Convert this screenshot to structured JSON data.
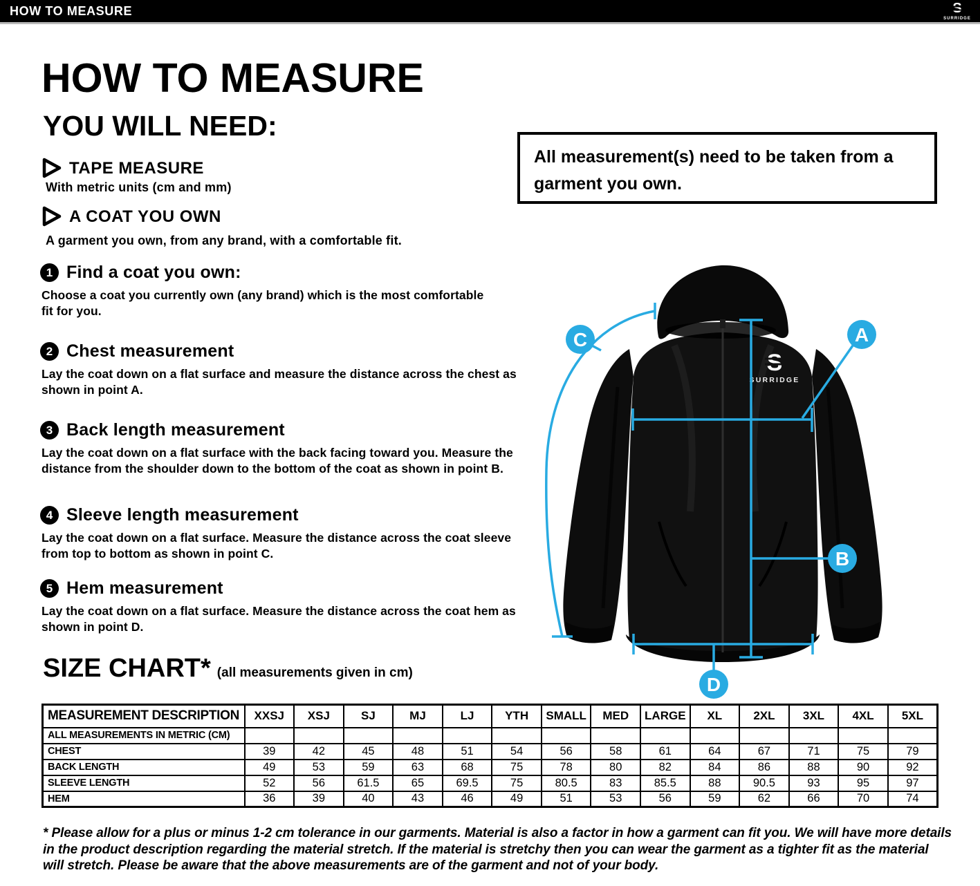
{
  "brand": {
    "glyph": "S",
    "name": "SURRIDGE"
  },
  "header": {
    "title": "HOW TO MEASURE"
  },
  "intro": {
    "title": "HOW TO MEASURE",
    "subtitle": "YOU WILL NEED:",
    "requirements": [
      {
        "label": "TAPE MEASURE",
        "description": "With metric units (cm and mm)"
      },
      {
        "label": "A COAT YOU OWN",
        "description": "A garment you own, from any brand, with a comfortable fit."
      }
    ]
  },
  "steps": [
    {
      "number": "1",
      "title": "Find a coat you own:",
      "description": "Choose a coat you currently own (any brand) which is the most comfortable fit for you."
    },
    {
      "number": "2",
      "title": "Chest measurement",
      "description": "Lay the coat down on a flat surface and measure the distance across the chest as shown in point A."
    },
    {
      "number": "3",
      "title": "Back length measurement",
      "description": "Lay the coat down on a flat surface with the back facing toward you. Measure the distance from the shoulder down to the bottom of the coat as shown in point B."
    },
    {
      "number": "4",
      "title": "Sleeve length measurement",
      "description": "Lay the coat down on a flat surface. Measure the distance across the coat sleeve from top to bottom as shown in point C."
    },
    {
      "number": "5",
      "title": "Hem measurement",
      "description": "Lay the coat down on a flat surface. Measure the distance across the coat hem as shown in point D."
    }
  ],
  "note_box": {
    "text": "All measurement(s) need to be taken from a garment you own."
  },
  "diagram": {
    "markers": [
      "A",
      "B",
      "C",
      "D"
    ],
    "accent_color": "#29ABE2",
    "jacket_color": "#111111"
  },
  "size_chart": {
    "title": "SIZE CHART*",
    "subtitle": "(all measurements given in cm)",
    "columns": [
      "MEASUREMENT DESCRIPTION",
      "XXSJ",
      "XSJ",
      "SJ",
      "MJ",
      "LJ",
      "YTH",
      "SMALL",
      "MED",
      "LARGE",
      "XL",
      "2XL",
      "3XL",
      "4XL",
      "5XL"
    ],
    "unit_row_label": "ALL MEASUREMENTS IN METRIC (CM)",
    "rows": [
      {
        "label": "CHEST",
        "values": [
          "39",
          "42",
          "45",
          "48",
          "51",
          "54",
          "56",
          "58",
          "61",
          "64",
          "67",
          "71",
          "75",
          "79"
        ]
      },
      {
        "label": "BACK LENGTH",
        "values": [
          "49",
          "53",
          "59",
          "63",
          "68",
          "75",
          "78",
          "80",
          "82",
          "84",
          "86",
          "88",
          "90",
          "92"
        ]
      },
      {
        "label": "SLEEVE LENGTH",
        "values": [
          "52",
          "56",
          "61.5",
          "65",
          "69.5",
          "75",
          "80.5",
          "83",
          "85.5",
          "88",
          "90.5",
          "93",
          "95",
          "97"
        ]
      },
      {
        "label": "HEM",
        "values": [
          "36",
          "39",
          "40",
          "43",
          "46",
          "49",
          "51",
          "53",
          "56",
          "59",
          "62",
          "66",
          "70",
          "74"
        ]
      }
    ]
  },
  "footnote": "* Please allow for a plus or minus 1-2 cm tolerance in our garments. Material is also a factor in how a garment can fit you. We will have more details in the product description regarding the material stretch.  If the material is stretchy then you can wear the garment as a tighter fit as the material will stretch.  Please be aware that the above measurements are of the garment and not of your body."
}
